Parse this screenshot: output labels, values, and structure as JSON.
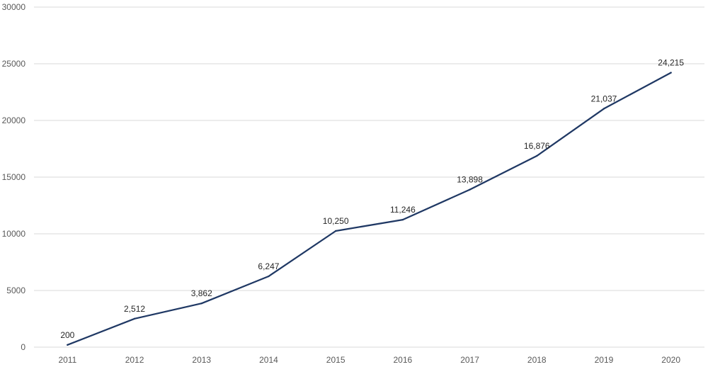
{
  "chart_data": {
    "type": "line",
    "categories": [
      "2011",
      "2012",
      "2013",
      "2014",
      "2015",
      "2016",
      "2017",
      "2018",
      "2019",
      "2020"
    ],
    "series": [
      {
        "values": [
          200,
          2512,
          3862,
          6247,
          10250,
          11246,
          13898,
          16876,
          21037,
          24215
        ],
        "labels": [
          "200",
          "2,512",
          "3,862",
          "6,247",
          "10,250",
          "11,246",
          "13,898",
          "16,876",
          "21,037",
          "24,215"
        ],
        "color": "#1f3864"
      }
    ],
    "ylim": [
      0,
      30000
    ],
    "yticks": [
      "0",
      "5000",
      "10000",
      "15000",
      "20000",
      "25000",
      "30000"
    ],
    "grid": true,
    "legend": "none"
  }
}
